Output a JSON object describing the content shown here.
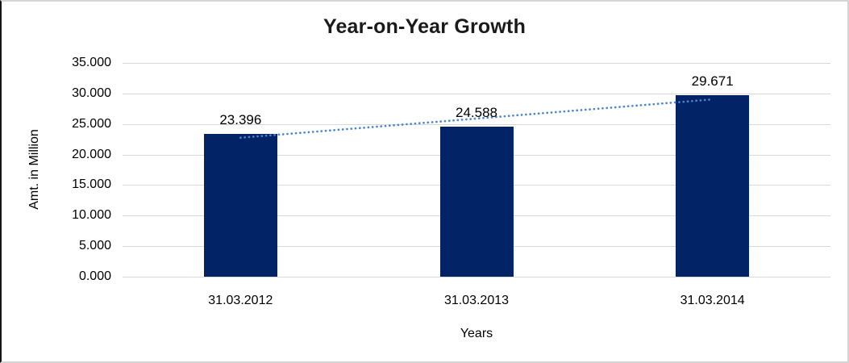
{
  "chart_data": {
    "type": "bar",
    "title": "Year-on-Year Growth",
    "xlabel": "Years",
    "ylabel": "Amt. in Million",
    "categories": [
      "31.03.2012",
      "31.03.2013",
      "31.03.2014"
    ],
    "values": [
      23.396,
      24.588,
      29.671
    ],
    "value_labels": [
      "23.396",
      "24.588",
      "29.671"
    ],
    "y_ticks": [
      "0.000",
      "5.000",
      "10.000",
      "15.000",
      "20.000",
      "25.000",
      "30.000",
      "35.000"
    ],
    "ylim": [
      0,
      35
    ],
    "grid": true,
    "legend": "none",
    "bar_color": "#022366",
    "gridline_color": "#d9d9d9",
    "trendline": {
      "type": "linear",
      "style": "dotted",
      "color": "#4a85d0"
    }
  }
}
